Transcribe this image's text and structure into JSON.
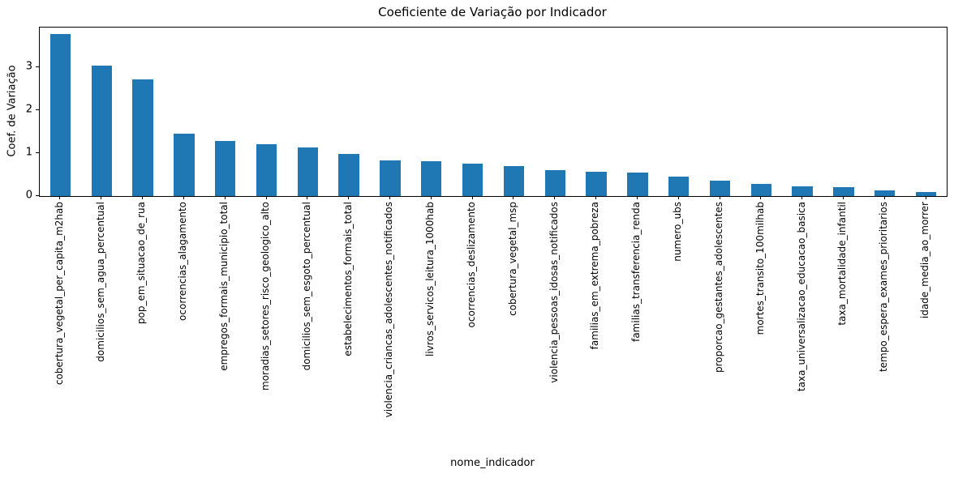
{
  "chart_data": {
    "type": "bar",
    "title": "Coeficiente de Variação por Indicador",
    "xlabel": "nome_indicador",
    "ylabel": "Coef. de Variação",
    "categories": [
      "cobertura_vegetal_per_capita_m2hab",
      "domicilios_sem_agua_percentual",
      "pop_em_situacao_de_rua",
      "ocorrencias_alagamento",
      "empregos_formais_municipio_total",
      "moradias_setores_risco_geologico_alto",
      "domicilios_sem_esgoto_percentual",
      "estabelecimentos_formais_total",
      "violencia_criancas_adolescentes_notificados",
      "livros_servicos_leitura_1000hab",
      "ocorrencias_deslizamento",
      "cobertura_vegetal_msp",
      "violencia_pessoas_idosas_notificados",
      "familias_em_extrema_pobreza",
      "familias_transferencia_renda",
      "numero_ubs",
      "proporcao_gestantes_adolescentes",
      "mortes_transito_100milhab",
      "taxa_universalizacao_educacao_basica",
      "taxa_mortalidade_infantil",
      "tempo_espera_exames_prioritarios",
      "idade_media_ao_morrer"
    ],
    "values": [
      3.77,
      3.04,
      2.71,
      1.46,
      1.28,
      1.21,
      1.13,
      0.98,
      0.83,
      0.81,
      0.75,
      0.7,
      0.6,
      0.57,
      0.55,
      0.46,
      0.35,
      0.29,
      0.22,
      0.21,
      0.13,
      0.1
    ],
    "yticks": [
      0,
      1,
      2,
      3
    ],
    "ylim": [
      0,
      3.92
    ],
    "bar_color": "#1f77b4",
    "background_color": "#ffffff",
    "grid": false,
    "legend_position": "none",
    "bar_width_fraction": 0.5
  }
}
